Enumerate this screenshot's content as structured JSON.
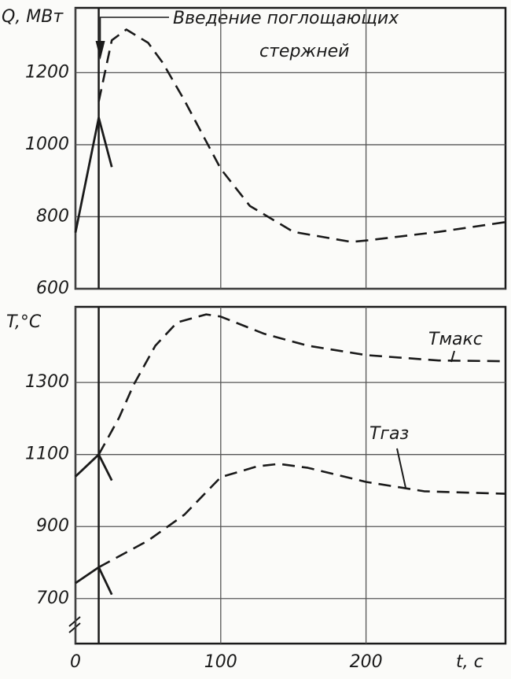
{
  "chart_data": [
    {
      "type": "line",
      "y_label": "Q, МВт",
      "annotation": {
        "lines": [
          "Введение поглощающих",
          "стержней"
        ],
        "x": 16
      },
      "xlim": [
        0,
        296
      ],
      "ylim": [
        600,
        1380
      ],
      "yticks": [
        600,
        800,
        1000,
        1200
      ],
      "grid": true,
      "color": "#1a1a1a",
      "series": [
        {
          "x": [
            0,
            16,
            25
          ],
          "values": [
            756,
            1075,
            938
          ],
          "dash": false
        },
        {
          "x": [
            16,
            25,
            35,
            50,
            60,
            75,
            100,
            120,
            150,
            190,
            200,
            250,
            296
          ],
          "values": [
            1120,
            1290,
            1320,
            1283,
            1228,
            1123,
            933,
            830,
            758,
            730,
            734,
            758,
            785
          ],
          "dash": true
        }
      ]
    },
    {
      "type": "line",
      "y_label": "T,°C",
      "x_label": "t, c",
      "xlim": [
        0,
        296
      ],
      "ylim": [
        575,
        1510
      ],
      "xticks": [
        0,
        100,
        200
      ],
      "yticks": [
        700,
        900,
        1100,
        1300
      ],
      "grid": true,
      "color": "#1a1a1a",
      "series": [
        {
          "x": [
            0,
            16,
            25
          ],
          "values": [
            1039,
            1100,
            1028
          ],
          "dash": false
        },
        {
          "name": "Tмакс",
          "x": [
            16,
            30,
            40,
            55,
            70,
            90,
            100,
            130,
            160,
            200,
            250,
            296
          ],
          "values": [
            1100,
            1202,
            1293,
            1402,
            1467,
            1489,
            1483,
            1435,
            1402,
            1376,
            1361,
            1359
          ],
          "dash": true
        },
        {
          "x": [
            0,
            16,
            25
          ],
          "values": [
            743,
            787,
            711
          ],
          "dash": false
        },
        {
          "name": "Tгаз",
          "x": [
            16,
            50,
            75,
            100,
            125,
            140,
            160,
            200,
            240,
            296
          ],
          "values": [
            787,
            861,
            933,
            1037,
            1067,
            1074,
            1063,
            1024,
            998,
            991
          ],
          "dash": true
        }
      ]
    }
  ]
}
